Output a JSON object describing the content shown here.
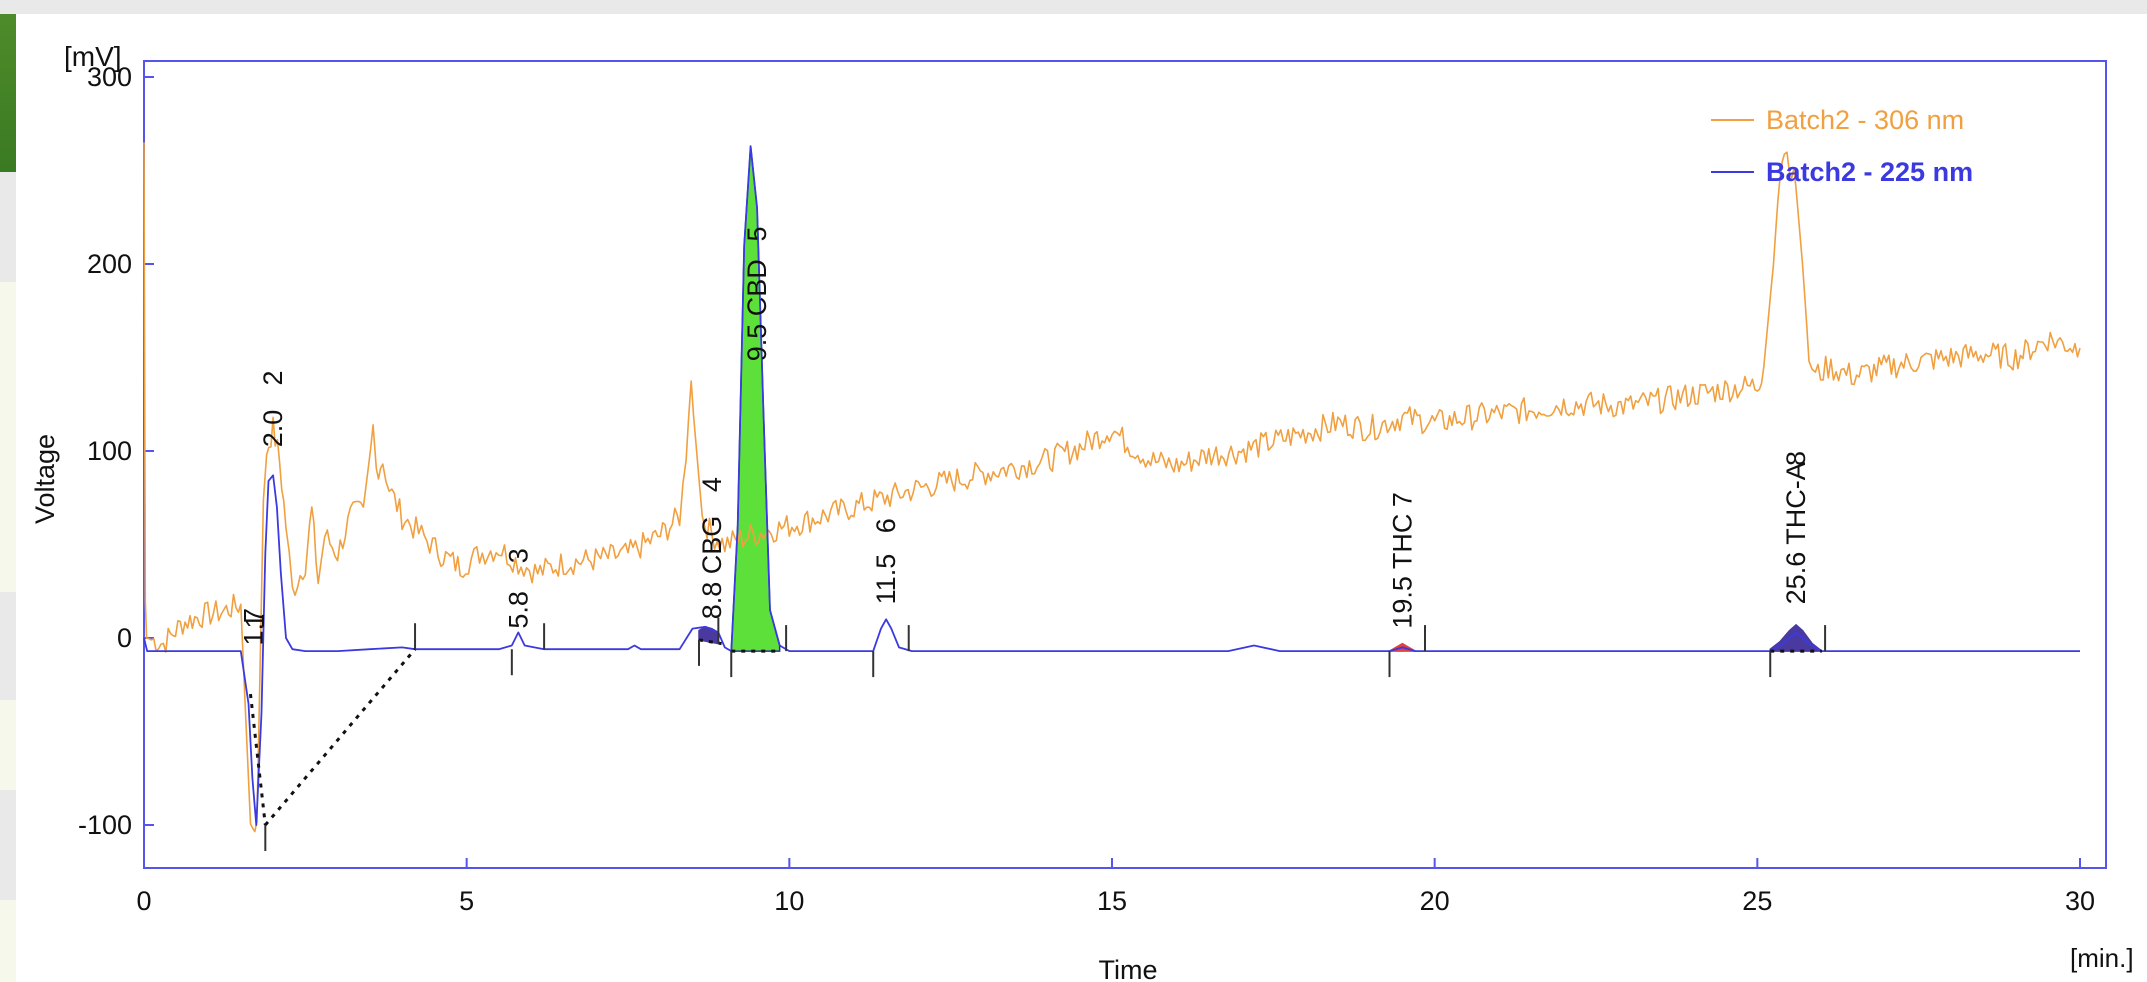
{
  "chart_data": {
    "type": "line",
    "title": "",
    "xlabel": "Time",
    "ylabel": "Voltage",
    "x_unit": "[min.]",
    "y_unit": "[mV]",
    "xlim": [
      0,
      30
    ],
    "ylim": [
      -133,
      300
    ],
    "x_ticks": [
      0,
      5,
      10,
      15,
      20,
      25,
      30
    ],
    "y_ticks": [
      -100,
      0,
      100,
      200,
      300
    ],
    "grid": false,
    "legend_position": "top-right",
    "series": [
      {
        "name": "Batch2 - 306 nm",
        "color": "#f0a040",
        "x": [
          0,
          0.02,
          0.04,
          0.3,
          0.6,
          0.9,
          1.2,
          1.5,
          1.65,
          1.75,
          1.85,
          1.9,
          2.0,
          2.1,
          2.2,
          2.3,
          2.5,
          2.6,
          2.7,
          2.8,
          3.0,
          3.2,
          3.4,
          3.55,
          3.6,
          3.7,
          3.8,
          4.0,
          4.3,
          4.6,
          4.9,
          5.2,
          5.5,
          5.8,
          6.1,
          6.5,
          7.0,
          7.5,
          8.0,
          8.3,
          8.4,
          8.48,
          8.55,
          8.65,
          8.8,
          9.0,
          9.4,
          10,
          11,
          12,
          13,
          14,
          14.5,
          15,
          15.2,
          15.6,
          16,
          16.5,
          17,
          17.5,
          18,
          18.5,
          19,
          19.5,
          20,
          20.5,
          21,
          21.5,
          22,
          22.5,
          23,
          23.5,
          24,
          24.5,
          25,
          25.1,
          25.25,
          25.35,
          25.42,
          25.5,
          25.6,
          25.7,
          25.8,
          25.9,
          26.1,
          26.5,
          27,
          27.5,
          28,
          28.5,
          29,
          29.5,
          30
        ],
        "y": [
          265,
          20,
          0,
          -3,
          8,
          12,
          14,
          18,
          -100,
          -98,
          70,
          100,
          112,
          95,
          60,
          25,
          40,
          68,
          30,
          55,
          45,
          65,
          70,
          112,
          90,
          95,
          80,
          65,
          55,
          45,
          38,
          45,
          48,
          40,
          35,
          40,
          42,
          45,
          55,
          65,
          95,
          142,
          105,
          65,
          55,
          50,
          55,
          60,
          70,
          80,
          88,
          95,
          102,
          112,
          105,
          95,
          92,
          98,
          100,
          105,
          110,
          115,
          112,
          118,
          115,
          118,
          120,
          122,
          125,
          125,
          124,
          127,
          130,
          133,
          135,
          145,
          200,
          250,
          262,
          255,
          240,
          200,
          150,
          140,
          145,
          140,
          145,
          148,
          150,
          152,
          150,
          160,
          155
        ]
      },
      {
        "name": "Batch2 - 225 nm",
        "color": "#3a3ae0",
        "x": [
          0,
          0.02,
          0.05,
          0.5,
          1.0,
          1.5,
          1.62,
          1.68,
          1.74,
          1.82,
          1.88,
          1.93,
          2.0,
          2.06,
          2.12,
          2.2,
          2.3,
          2.5,
          3.0,
          3.5,
          4.0,
          4.2,
          5.5,
          5.7,
          5.8,
          5.9,
          6.2,
          7.5,
          7.6,
          7.7,
          8.3,
          8.5,
          8.7,
          8.9,
          9.0,
          9.1,
          9.2,
          9.3,
          9.4,
          9.5,
          9.6,
          9.7,
          9.85,
          10.0,
          11.3,
          11.42,
          11.5,
          11.58,
          11.7,
          11.9,
          16.8,
          17.2,
          17.6,
          19.3,
          19.5,
          19.7,
          20.0,
          25.2,
          25.4,
          25.6,
          25.8,
          26.0,
          30
        ],
        "y": [
          0,
          -3,
          -7,
          -7,
          -7,
          -7,
          -35,
          -75,
          -100,
          -40,
          45,
          84,
          87,
          70,
          35,
          0,
          -6,
          -7,
          -7,
          -6,
          -5,
          -6,
          -6,
          -4,
          3,
          -4,
          -6,
          -6,
          -4,
          -6,
          -6,
          5,
          6,
          3,
          -5,
          -7,
          60,
          210,
          263,
          230,
          120,
          15,
          -4,
          -7,
          -7,
          5,
          10,
          5,
          -5,
          -7,
          -7,
          -4,
          -7,
          -7,
          -5,
          -7,
          -7,
          -7,
          -3,
          3,
          -3,
          -7,
          -7
        ]
      }
    ],
    "peaks": [
      {
        "number": 1,
        "rt": "1.7",
        "name": ""
      },
      {
        "number": 2,
        "rt": "2.0",
        "name": ""
      },
      {
        "number": 3,
        "rt": "5.8",
        "name": ""
      },
      {
        "number": 4,
        "rt": "8.8",
        "name": "CBG"
      },
      {
        "number": 5,
        "rt": "9.5",
        "name": "CBD"
      },
      {
        "number": 6,
        "rt": "11.5",
        "name": ""
      },
      {
        "number": 7,
        "rt": "19.5",
        "name": "THC"
      },
      {
        "number": 8,
        "rt": "25.6",
        "name": "THC-A"
      }
    ],
    "peak_labels": [
      {
        "retention": 1.7,
        "baseline_y": -4,
        "text": "1.7"
      },
      {
        "retention": 1.72,
        "baseline_y": 5,
        "text": "1"
      },
      {
        "retention": 2.0,
        "baseline_y": 102,
        "text": "2.0"
      },
      {
        "retention": 2.0,
        "baseline_y": 135,
        "text": "2"
      },
      {
        "retention": 5.8,
        "baseline_y": 5,
        "text": "5.8"
      },
      {
        "retention": 5.8,
        "baseline_y": 40,
        "text": "3"
      },
      {
        "retention": 8.8,
        "baseline_y": 10,
        "text": "8.8 CBG"
      },
      {
        "retention": 8.8,
        "baseline_y": 78,
        "text": "4"
      },
      {
        "retention": 9.5,
        "baseline_y": 148,
        "text": "9.5 CBD"
      },
      {
        "retention": 9.5,
        "baseline_y": 212,
        "text": "5"
      },
      {
        "retention": 11.5,
        "baseline_y": 18,
        "text": "11.5"
      },
      {
        "retention": 11.5,
        "baseline_y": 56,
        "text": "6"
      },
      {
        "retention": 19.5,
        "baseline_y": 5,
        "text": "19.5 THC"
      },
      {
        "retention": 19.5,
        "baseline_y": 70,
        "text": "7"
      },
      {
        "retention": 25.6,
        "baseline_y": 18,
        "text": "25.6 THC-A"
      },
      {
        "retention": 25.6,
        "baseline_y": 92,
        "text": "8"
      }
    ],
    "peak_fills": [
      {
        "color": "#5ee03a",
        "outline": "#2a2aa0",
        "x": [
          9.1,
          9.2,
          9.3,
          9.4,
          9.5,
          9.6,
          9.7,
          9.85
        ],
        "y": [
          -7,
          60,
          210,
          263,
          230,
          120,
          15,
          -4
        ],
        "base": [
          -7,
          -7
        ]
      },
      {
        "color": "#4a3aa0",
        "x": [
          8.6,
          8.7,
          8.8,
          8.9
        ],
        "y": [
          4,
          6,
          5,
          3
        ],
        "base": [
          -1,
          -3
        ]
      },
      {
        "color": "#4a3aa0",
        "x": [
          25.2,
          25.35,
          25.5,
          25.6,
          25.7,
          25.85,
          26.0
        ],
        "y": [
          -6,
          -2,
          4,
          7,
          4,
          -3,
          -7
        ],
        "base": [
          -7,
          -7
        ]
      },
      {
        "color": "#e04040",
        "x": [
          19.3,
          19.45,
          19.5,
          19.55,
          19.7
        ],
        "y": [
          -7,
          -4,
          -3,
          -4,
          -7
        ],
        "base": [
          -7,
          -7
        ]
      }
    ],
    "baseline_segments": [
      {
        "x": [
          1.88,
          4.2
        ],
        "y": [
          -100,
          -6
        ]
      },
      {
        "x": [
          1.65,
          1.88
        ],
        "y": [
          -30,
          -100
        ]
      },
      {
        "x": [
          9.1,
          9.85
        ],
        "y": [
          -7,
          -7
        ]
      },
      {
        "x": [
          25.2,
          26.0
        ],
        "y": [
          -7,
          -7
        ]
      },
      {
        "x": [
          8.6,
          8.95
        ],
        "y": [
          -1,
          -3
        ]
      }
    ],
    "markers": [
      {
        "x": 1.88,
        "y": -100,
        "dir": "down"
      },
      {
        "x": 4.2,
        "y": -6,
        "dir": "up"
      },
      {
        "x": 5.7,
        "y": -6,
        "dir": "down"
      },
      {
        "x": 6.2,
        "y": -6,
        "dir": "up"
      },
      {
        "x": 8.6,
        "y": -1,
        "dir": "down"
      },
      {
        "x": 8.9,
        "y": -3,
        "dir": "up"
      },
      {
        "x": 9.1,
        "y": -7,
        "dir": "down"
      },
      {
        "x": 9.95,
        "y": -7,
        "dir": "up"
      },
      {
        "x": 11.3,
        "y": -7,
        "dir": "down"
      },
      {
        "x": 11.85,
        "y": -7,
        "dir": "up"
      },
      {
        "x": 19.3,
        "y": -7,
        "dir": "down"
      },
      {
        "x": 19.85,
        "y": -7,
        "dir": "up"
      },
      {
        "x": 25.2,
        "y": -7,
        "dir": "down"
      },
      {
        "x": 26.05,
        "y": -7,
        "dir": "up"
      }
    ],
    "colors": {
      "axis": "#5555ee",
      "tick_label": "#111111"
    }
  }
}
